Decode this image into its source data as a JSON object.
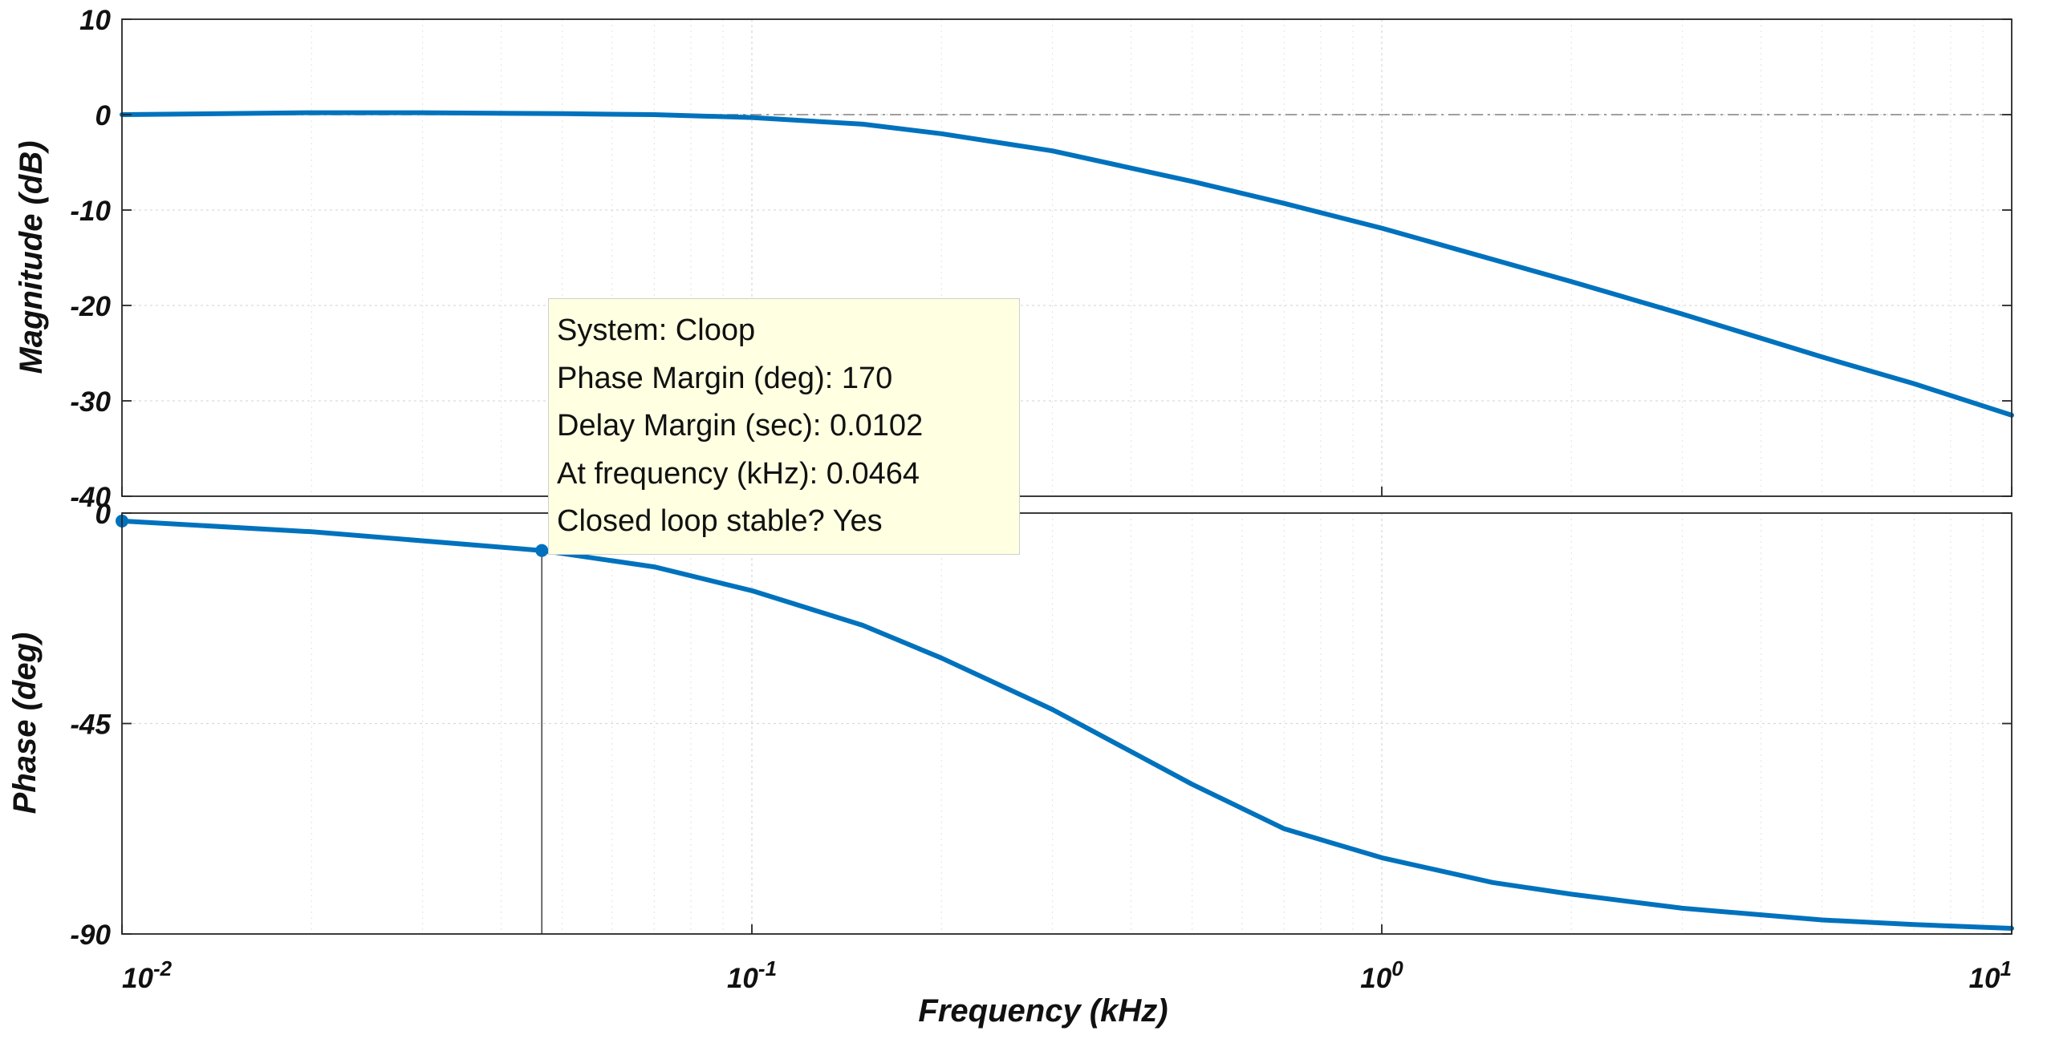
{
  "chart_data": {
    "type": "line",
    "subtype": "bode",
    "title": "",
    "xlabel": "Frequency (kHz)",
    "xscale": "log",
    "xlim": [
      0.01,
      10
    ],
    "x_ticks": [
      {
        "value": 0.01,
        "base": "10",
        "exp": "-2"
      },
      {
        "value": 0.1,
        "base": "10",
        "exp": "-1"
      },
      {
        "value": 1,
        "base": "10",
        "exp": "0"
      },
      {
        "value": 10,
        "base": "10",
        "exp": "1"
      }
    ],
    "grid": true,
    "colors": {
      "curve": "#0072bd",
      "reference_line": "#808080",
      "marker_line": "#404040"
    },
    "panels": [
      {
        "name": "magnitude",
        "ylabel": "Magnitude (dB)",
        "ylim": [
          -40,
          10
        ],
        "y_ticks": [
          "10",
          "0",
          "-10",
          "-20",
          "-30",
          "-40"
        ],
        "reference_line_y": 0,
        "series": [
          {
            "name": "Cloop",
            "x": [
              0.01,
              0.02,
              0.03,
              0.05,
              0.07,
              0.1,
              0.15,
              0.2,
              0.3,
              0.5,
              0.7,
              1,
              2,
              3,
              5,
              7,
              10
            ],
            "y": [
              0,
              0.2,
              0.2,
              0.1,
              0,
              -0.3,
              -1,
              -2,
              -3.8,
              -7,
              -9.3,
              -11.9,
              -17.5,
              -20.9,
              -25.4,
              -28.2,
              -31.5
            ]
          }
        ]
      },
      {
        "name": "phase",
        "ylabel": "Phase (deg)",
        "ylim": [
          -90,
          0
        ],
        "y_ticks": [
          "0",
          "-45",
          "-90"
        ],
        "series": [
          {
            "name": "Cloop",
            "x": [
              0.01,
              0.02,
              0.0464,
              0.07,
              0.1,
              0.15,
              0.2,
              0.3,
              0.4,
              0.5,
              0.7,
              1,
              1.5,
              2,
              3,
              5,
              7,
              10
            ],
            "y": [
              -1.7,
              -4,
              -8,
              -11.5,
              -16.6,
              -24,
              -31,
              -42,
              -51,
              -58,
              -67.5,
              -73.7,
              -79,
              -81.5,
              -84.5,
              -87,
              -88,
              -88.8
            ]
          }
        ]
      }
    ],
    "annotations": {
      "marker": {
        "frequency_khz": 0.0464,
        "phase_deg": -8
      },
      "datatip": {
        "system": "System: Cloop",
        "phase_margin": "Phase Margin (deg): 170",
        "delay_margin": "Delay Margin (sec): 0.0102",
        "frequency": "At frequency (kHz): 0.0464",
        "stable": "Closed loop stable? Yes"
      }
    }
  }
}
